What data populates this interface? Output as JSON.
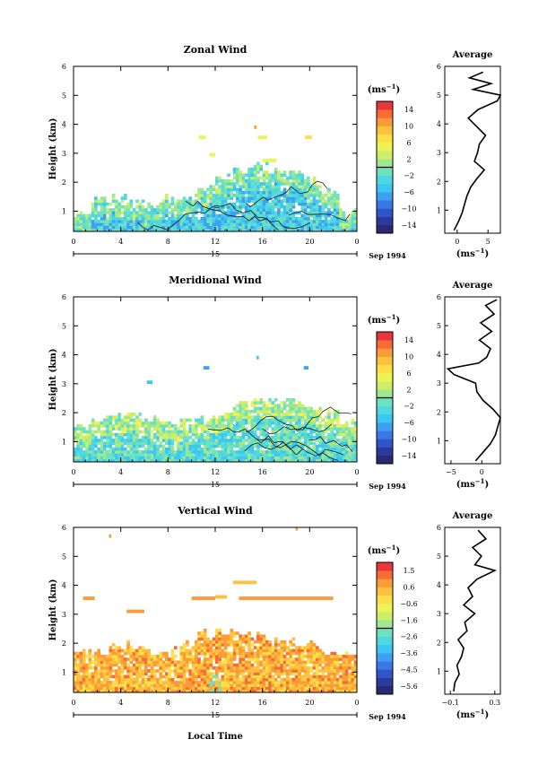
{
  "figure": {
    "bottom_label": "Local Time"
  },
  "chart_data": [
    {
      "type": "heatmap",
      "title": "Zonal Wind",
      "ylabel": "Height (km)",
      "xlim": [
        0,
        24
      ],
      "ylim": [
        0.3,
        6
      ],
      "xticks": [
        "0",
        "4",
        "8",
        "12",
        "16",
        "20",
        "0"
      ],
      "yticks": [
        "1",
        "2",
        "3",
        "4",
        "5",
        "6"
      ],
      "day_label": "15",
      "date_label": "Sep 1994",
      "colorbar": {
        "unit": "(ms",
        "unit_sup": "−1",
        "unit_close": ")",
        "ticks": [
          "14",
          "10",
          "6",
          "2",
          "−2",
          "−6",
          "−10",
          "−14"
        ],
        "min": -16,
        "max": 16
      },
      "profile": {
        "title": "Average",
        "xlabel": "(ms",
        "xlabel_sup": "−1",
        "xlabel_close": ")",
        "xlim": [
          -2,
          7
        ],
        "xticks": [
          "0",
          "5"
        ],
        "xtick_values": [
          0,
          5
        ],
        "heights": [
          0.3,
          0.6,
          0.9,
          1.2,
          1.5,
          1.8,
          2.1,
          2.4,
          2.7,
          3.0,
          3.3,
          3.6,
          3.9,
          4.2,
          4.5,
          4.8,
          5.0,
          5.2,
          5.4,
          5.6,
          5.8
        ],
        "values": [
          -0.5,
          0.2,
          0.8,
          1.2,
          1.6,
          2.2,
          3.2,
          4.4,
          2.8,
          3.3,
          3.6,
          4.6,
          3.2,
          1.8,
          3.4,
          6.5,
          7.0,
          2.6,
          5.5,
          2.0,
          4.2
        ]
      },
      "field": {
        "echo_top_km": [
          0.85,
          1.3,
          1.4,
          1.3,
          1.2,
          1.4,
          1.5,
          1.8,
          2.1,
          2.4,
          2.5,
          2.4,
          2.3,
          2.0,
          1.6,
          0.9
        ],
        "base_value": -4,
        "noise_amp": 4,
        "patches": [
          {
            "x0": 10.6,
            "x1": 11.2,
            "y": 3.55,
            "v": 5
          },
          {
            "x0": 15.6,
            "x1": 16.4,
            "y": 3.55,
            "v": 5
          },
          {
            "x0": 19.6,
            "x1": 20.2,
            "y": 3.55,
            "v": 6
          },
          {
            "x0": 15.3,
            "x1": 15.5,
            "y": 3.9,
            "v": 10
          },
          {
            "x0": 11.5,
            "x1": 12.0,
            "y": 2.95,
            "v": 4
          },
          {
            "x0": 16.0,
            "x1": 17.2,
            "y": 2.75,
            "v": 4
          }
        ]
      }
    },
    {
      "type": "heatmap",
      "title": "Meridional Wind",
      "ylabel": "Height (km)",
      "xlim": [
        0,
        24
      ],
      "ylim": [
        0.3,
        6
      ],
      "xticks": [
        "0",
        "4",
        "8",
        "12",
        "16",
        "20",
        "0"
      ],
      "yticks": [
        "1",
        "2",
        "3",
        "4",
        "5",
        "6"
      ],
      "day_label": "15",
      "date_label": "Sep 1994",
      "colorbar": {
        "unit": "(ms",
        "unit_sup": "−1",
        "unit_close": ")",
        "ticks": [
          "14",
          "10",
          "6",
          "2",
          "−2",
          "−6",
          "−10",
          "−14"
        ],
        "min": -16,
        "max": 16
      },
      "profile": {
        "title": "Average",
        "xlabel": "(ms",
        "xlabel_sup": "−1",
        "xlabel_close": ")",
        "xlim": [
          -6,
          3
        ],
        "xticks": [
          "−5",
          "0"
        ],
        "xtick_values": [
          -5,
          0
        ],
        "heights": [
          0.3,
          0.6,
          0.9,
          1.2,
          1.5,
          1.8,
          2.1,
          2.4,
          2.7,
          3.0,
          3.3,
          3.5,
          3.7,
          3.9,
          4.2,
          4.5,
          4.8,
          5.1,
          5.4,
          5.7,
          5.9
        ],
        "values": [
          -1.0,
          0.2,
          1.4,
          2.2,
          2.6,
          3.0,
          1.8,
          0.2,
          -0.8,
          -1.0,
          -4.5,
          -5.5,
          -0.5,
          0.8,
          1.4,
          -0.4,
          1.6,
          -0.2,
          2.0,
          0.6,
          2.4
        ]
      },
      "field": {
        "echo_top_km": [
          1.5,
          1.7,
          1.8,
          1.8,
          1.7,
          1.6,
          1.6,
          1.7,
          1.9,
          2.2,
          2.4,
          2.4,
          2.3,
          2.1,
          1.9,
          1.6
        ],
        "base_value": -2,
        "noise_amp": 4,
        "patches": [
          {
            "x0": 11.0,
            "x1": 11.5,
            "y": 3.55,
            "v": -8
          },
          {
            "x0": 15.5,
            "x1": 15.7,
            "y": 3.9,
            "v": -6
          },
          {
            "x0": 19.5,
            "x1": 19.9,
            "y": 3.55,
            "v": -8
          },
          {
            "x0": 6.2,
            "x1": 6.7,
            "y": 3.05,
            "v": -6
          }
        ]
      }
    },
    {
      "type": "heatmap",
      "title": "Vertical Wind",
      "ylabel": "Height (km)",
      "xlabel": "Local Time",
      "xlim": [
        0,
        24
      ],
      "ylim": [
        0.3,
        6
      ],
      "xticks": [
        "0",
        "4",
        "8",
        "12",
        "16",
        "20",
        "0"
      ],
      "yticks": [
        "1",
        "2",
        "3",
        "4",
        "5",
        "6"
      ],
      "day_label": "15",
      "date_label": "Sep 1994",
      "colorbar": {
        "unit": "(ms",
        "unit_sup": "−1",
        "unit_close": ")",
        "ticks": [
          "1.5",
          "0.6",
          "−0.6",
          "−1.6",
          "−2.6",
          "−3.6",
          "−4.5",
          "−5.6"
        ],
        "min": -6.1,
        "max": 2.0
      },
      "profile": {
        "title": "Average",
        "xlabel": "(ms",
        "xlabel_sup": "−1",
        "xlabel_close": ")",
        "xlim": [
          -0.15,
          0.35
        ],
        "xticks": [
          "−0.1",
          "0.3"
        ],
        "xtick_values": [
          -0.1,
          0.3
        ],
        "heights": [
          0.3,
          0.6,
          0.9,
          1.2,
          1.5,
          1.8,
          2.1,
          2.4,
          2.7,
          3.0,
          3.3,
          3.6,
          3.9,
          4.2,
          4.5,
          4.7,
          5.0,
          5.3,
          5.6,
          5.9
        ],
        "values": [
          -0.07,
          -0.06,
          -0.02,
          -0.04,
          0.0,
          0.02,
          -0.03,
          0.05,
          0.03,
          0.12,
          0.02,
          0.1,
          0.06,
          0.14,
          0.3,
          0.12,
          0.18,
          0.1,
          0.22,
          0.15
        ]
      },
      "field": {
        "echo_top_km": [
          1.6,
          1.7,
          1.9,
          1.9,
          1.6,
          1.7,
          1.9,
          2.3,
          2.4,
          2.3,
          2.2,
          2.1,
          2.0,
          1.9,
          1.6,
          1.5
        ],
        "base_value": 0.4,
        "noise_amp": 0.8,
        "patches": [
          {
            "x0": 10.0,
            "x1": 12.0,
            "y": 3.55,
            "v": 0.5
          },
          {
            "x0": 14.0,
            "x1": 22.0,
            "y": 3.55,
            "v": 0.5
          },
          {
            "x0": 0.8,
            "x1": 1.8,
            "y": 3.55,
            "v": 0.5
          },
          {
            "x0": 13.5,
            "x1": 15.5,
            "y": 4.1,
            "v": 0.4
          },
          {
            "x0": 18.8,
            "x1": 19.0,
            "y": 5.95,
            "v": 0.6
          },
          {
            "x0": 3.0,
            "x1": 3.2,
            "y": 5.7,
            "v": 0.8
          },
          {
            "x0": 4.5,
            "x1": 6.0,
            "y": 3.1,
            "v": 0.7
          },
          {
            "x0": 12.0,
            "x1": 13.0,
            "y": 3.6,
            "v": 0.4
          }
        ]
      }
    }
  ]
}
